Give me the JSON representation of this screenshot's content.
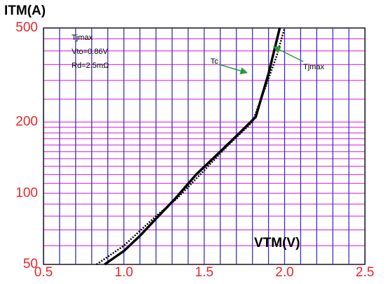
{
  "chart_data": {
    "type": "line",
    "log_y": true,
    "y_label": "ITM(A)",
    "x_label": "VTM(V)",
    "annotations": [
      "Tjmax",
      "Vto=0.86V",
      "Rd=2.5mΩ",
      "Tc",
      "Tjmax"
    ],
    "xlim": [
      0.5,
      2.5
    ],
    "xticks": [
      0.5,
      {
        "value": 1,
        "label": "1.0"
      },
      1.5,
      {
        "value": 2,
        "label": "2.0"
      },
      2.5
    ],
    "ylim": [
      50,
      500
    ],
    "yticks": [
      50,
      100,
      200,
      500
    ],
    "xgrid": [
      0.5,
      0.6,
      0.7,
      0.8,
      0.9,
      1,
      1.1,
      1.2,
      1.3,
      1.4,
      1.5,
      1.6,
      1.7,
      1.8,
      1.9,
      2,
      2.1,
      2.2,
      2.3,
      2.4,
      2.5
    ],
    "ygrid": [
      50,
      60,
      70,
      80,
      90,
      100,
      110,
      120,
      130,
      140,
      150,
      160,
      170,
      180,
      190,
      200,
      250,
      300,
      350,
      400,
      450,
      500
    ],
    "xgrid_color": "#3333cc",
    "ygrid_color": "#e040e0",
    "series": [
      {
        "color": "#000000",
        "style": "solid",
        "x": [
          0.88,
          1.0,
          1.1,
          1.2,
          1.32,
          1.45,
          1.6,
          1.72,
          1.82,
          1.9,
          1.97
        ],
        "values": [
          50,
          57,
          66,
          78,
          95,
          120,
          150,
          180,
          210,
          320,
          500
        ]
      },
      {
        "color": "#000000",
        "style": "dotted",
        "x": [
          0.83,
          1.0,
          1.2,
          1.33,
          1.5,
          1.65,
          1.8,
          1.88,
          1.95,
          2.0
        ],
        "values": [
          50,
          60,
          80,
          95,
          125,
          160,
          200,
          280,
          380,
          500
        ]
      }
    ]
  }
}
